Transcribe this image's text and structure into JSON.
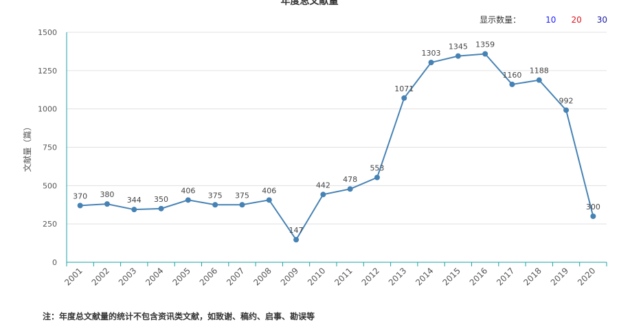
{
  "title": "年度总文献量",
  "display_count": {
    "label": "显示数量：",
    "options": [
      "10",
      "20",
      "30"
    ],
    "colors": [
      "#1a1aff",
      "#e0141e",
      "#1a1aa6"
    ]
  },
  "footnote": "注：年度总文献量的统计不包含资讯类文献，如致谢、稿约、启事、勘误等",
  "chart_data": {
    "type": "line",
    "title": "年度总文献量",
    "xlabel": "",
    "ylabel": "文献量（篇）",
    "categories": [
      "2001",
      "2002",
      "2003",
      "2004",
      "2005",
      "2006",
      "2007",
      "2008",
      "2009",
      "2010",
      "2011",
      "2012",
      "2013",
      "2014",
      "2015",
      "2016",
      "2017",
      "2018",
      "2019",
      "2020"
    ],
    "values": [
      370,
      380,
      344,
      350,
      406,
      375,
      375,
      406,
      147,
      442,
      478,
      553,
      1071,
      1303,
      1345,
      1359,
      1160,
      1188,
      992,
      300
    ],
    "ylim": [
      0,
      1500
    ],
    "yticks": [
      0,
      250,
      500,
      750,
      1000,
      1250,
      1500
    ],
    "grid": true,
    "line_color": "#4682b4",
    "axis_color": "#1a9fa0"
  }
}
